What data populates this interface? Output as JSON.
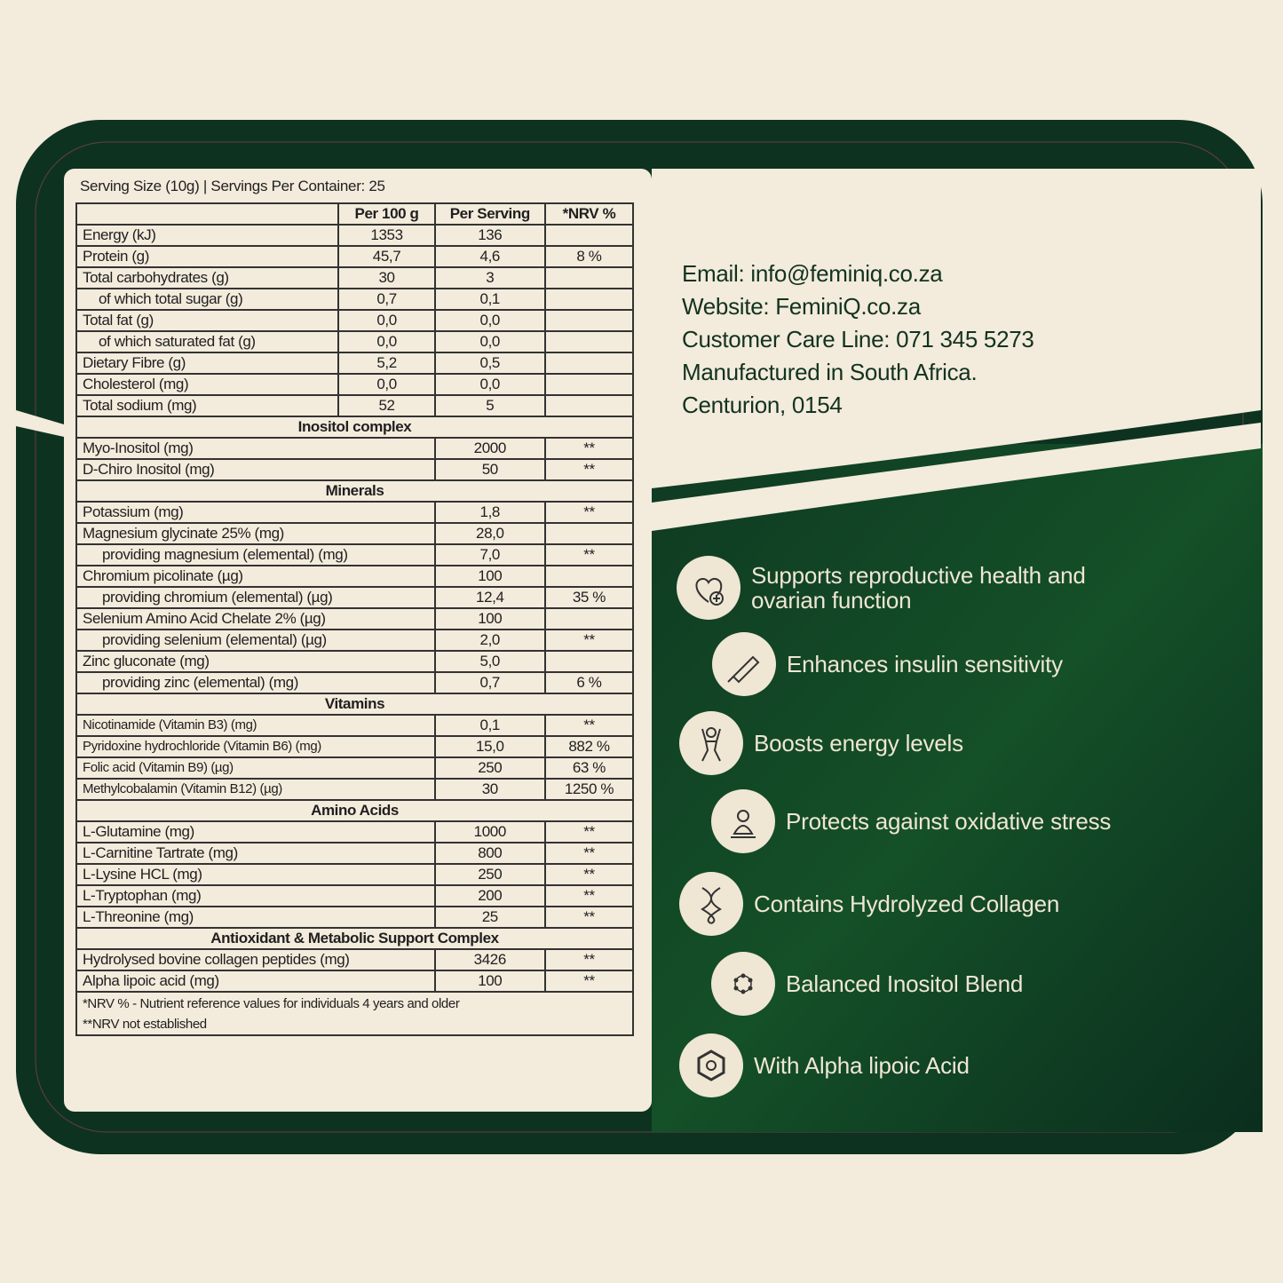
{
  "colors": {
    "background": "#f3ebdc",
    "dark_green": "#0d3320",
    "mid_green": "#124a2a",
    "cream": "#efe6d4"
  },
  "serving_info": "Serving Size (10g)  |  Servings Per Container: 25",
  "table": {
    "headers": [
      "",
      "Per 100 g",
      "Per Serving",
      "*NRV %"
    ],
    "basic_rows": [
      {
        "label": "Energy (kJ)",
        "per100": "1353",
        "serving": "136",
        "nrv": ""
      },
      {
        "label": "Protein (g)",
        "per100": "45,7",
        "serving": "4,6",
        "nrv": "8 %"
      },
      {
        "label": "Total carbohydrates (g)",
        "per100": "30",
        "serving": "3",
        "nrv": ""
      },
      {
        "label": "of which total sugar (g)",
        "per100": "0,7",
        "serving": "0,1",
        "nrv": "",
        "indent": true
      },
      {
        "label": "Total fat (g)",
        "per100": "0,0",
        "serving": "0,0",
        "nrv": ""
      },
      {
        "label": "of which saturated fat (g)",
        "per100": "0,0",
        "serving": "0,0",
        "nrv": "",
        "indent": true
      },
      {
        "label": "Dietary Fibre (g)",
        "per100": "5,2",
        "serving": "0,5",
        "nrv": ""
      },
      {
        "label": "Cholesterol (mg)",
        "per100": "0,0",
        "serving": "0,0",
        "nrv": ""
      },
      {
        "label": "Total sodium (mg)",
        "per100": "52",
        "serving": "5",
        "nrv": ""
      }
    ],
    "sections": [
      {
        "title": "Inositol complex",
        "rows": [
          {
            "label": "Myo-Inositol (mg)",
            "serving": "2000",
            "nrv": "**"
          },
          {
            "label": "D-Chiro Inositol (mg)",
            "serving": "50",
            "nrv": "**"
          }
        ]
      },
      {
        "title": "Minerals",
        "rows": [
          {
            "label": "Potassium (mg)",
            "serving": "1,8",
            "nrv": "**"
          },
          {
            "label": "Magnesium glycinate 25% (mg)",
            "serving": "28,0",
            "nrv": ""
          },
          {
            "label": "providing magnesium (elemental) (mg)",
            "serving": "7,0",
            "nrv": "**",
            "indent": true
          },
          {
            "label": "Chromium picolinate (µg)",
            "serving": "100",
            "nrv": ""
          },
          {
            "label": "providing chromium (elemental) (µg)",
            "serving": "12,4",
            "nrv": "35 %",
            "indent": true
          },
          {
            "label": "Selenium Amino Acid Chelate 2% (µg)",
            "serving": "100",
            "nrv": ""
          },
          {
            "label": "providing selenium (elemental) (µg)",
            "serving": "2,0",
            "nrv": "**",
            "indent": true
          },
          {
            "label": "Zinc gluconate (mg)",
            "serving": "5,0",
            "nrv": ""
          },
          {
            "label": "providing zinc (elemental) (mg)",
            "serving": "0,7",
            "nrv": "6 %",
            "indent": true
          }
        ]
      },
      {
        "title": "Vitamins",
        "small": true,
        "rows": [
          {
            "label": "Nicotinamide (Vitamin B3) (mg)",
            "serving": "0,1",
            "nrv": "**"
          },
          {
            "label": "Pyridoxine hydrochloride (Vitamin B6) (mg)",
            "serving": "15,0",
            "nrv": "882 %"
          },
          {
            "label": "Folic acid (Vitamin B9) (µg)",
            "serving": "250",
            "nrv": "63 %"
          },
          {
            "label": "Methylcobalamin (Vitamin B12) (µg)",
            "serving": "30",
            "nrv": "1250 %"
          }
        ]
      },
      {
        "title": "Amino Acids",
        "rows": [
          {
            "label": "L-Glutamine (mg)",
            "serving": "1000",
            "nrv": "**"
          },
          {
            "label": "L-Carnitine Tartrate (mg)",
            "serving": "800",
            "nrv": "**"
          },
          {
            "label": "L-Lysine HCL (mg)",
            "serving": "250",
            "nrv": "**"
          },
          {
            "label": "L-Tryptophan (mg)",
            "serving": "200",
            "nrv": "**"
          },
          {
            "label": "L-Threonine (mg)",
            "serving": "25",
            "nrv": "**"
          }
        ]
      },
      {
        "title": "Antioxidant & Metabolic Support Complex",
        "rows": [
          {
            "label": "Hydrolysed bovine collagen peptides (mg)",
            "serving": "3426",
            "nrv": "**"
          },
          {
            "label": "Alpha lipoic acid (mg)",
            "serving": "100",
            "nrv": "**"
          }
        ]
      }
    ],
    "footnotes": [
      "*NRV % - Nutrient reference values for individuals 4 years and older",
      "**NRV not established"
    ]
  },
  "contact": [
    "Email: info@feminiq.co.za",
    "Website: FeminiQ.co.za",
    "Customer Care Line: 071 345 5273",
    "Manufactured in South Africa.",
    "Centurion, 0154"
  ],
  "features": [
    {
      "icon": "heart-plus-icon",
      "text": "Supports reproductive health and ovarian function"
    },
    {
      "icon": "insulin-pen-icon",
      "text": "Enhances insulin sensitivity"
    },
    {
      "icon": "energetic-person-icon",
      "text": "Boosts energy levels"
    },
    {
      "icon": "meditating-person-icon",
      "text": "Protects against oxidative stress"
    },
    {
      "icon": "dna-helix-icon",
      "text": "Contains Hydrolyzed Collagen"
    },
    {
      "icon": "molecule-icon",
      "text": "Balanced Inositol Blend"
    },
    {
      "icon": "ring-molecule-icon",
      "text": "With Alpha lipoic Acid"
    }
  ]
}
